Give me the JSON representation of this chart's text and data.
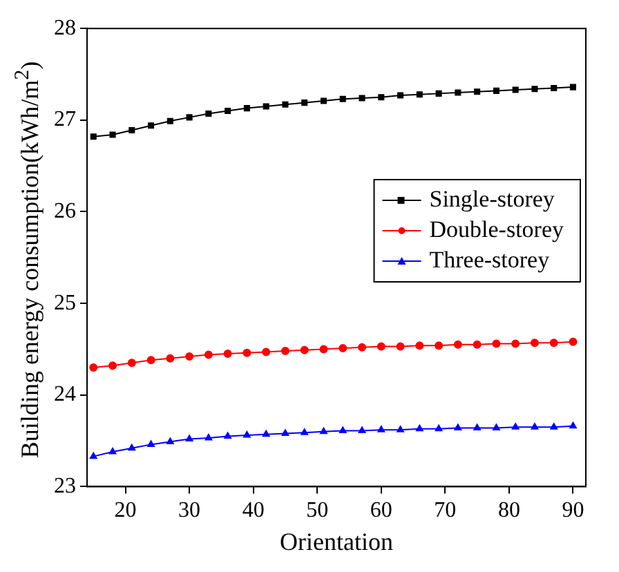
{
  "chart_data": {
    "type": "line",
    "xlabel": "Orientation",
    "ylabel": "Building energy consumption(kWh/m$^{2}$)",
    "x": [
      15,
      18,
      21,
      24,
      27,
      30,
      33,
      36,
      39,
      42,
      45,
      48,
      51,
      54,
      57,
      60,
      63,
      66,
      69,
      72,
      75,
      78,
      81,
      84,
      87,
      90
    ],
    "series": [
      {
        "name": "Single-storey",
        "color": "#000000",
        "marker": "square",
        "values": [
          26.82,
          26.84,
          26.89,
          26.94,
          26.99,
          27.03,
          27.07,
          27.1,
          27.13,
          27.15,
          27.17,
          27.19,
          27.21,
          27.23,
          27.24,
          27.25,
          27.27,
          27.28,
          27.29,
          27.3,
          27.31,
          27.32,
          27.33,
          27.34,
          27.35,
          27.36
        ]
      },
      {
        "name": "Double-storey",
        "color": "#ff0000",
        "marker": "circle",
        "values": [
          24.3,
          24.32,
          24.35,
          24.38,
          24.4,
          24.42,
          24.44,
          24.45,
          24.46,
          24.47,
          24.48,
          24.49,
          24.5,
          24.51,
          24.52,
          24.53,
          24.53,
          24.54,
          24.54,
          24.55,
          24.55,
          24.56,
          24.56,
          24.57,
          24.57,
          24.58
        ]
      },
      {
        "name": "Three-storey",
        "color": "#0000ff",
        "marker": "triangle",
        "values": [
          23.33,
          23.38,
          23.42,
          23.46,
          23.49,
          23.52,
          23.53,
          23.55,
          23.56,
          23.57,
          23.58,
          23.59,
          23.6,
          23.61,
          23.61,
          23.62,
          23.62,
          23.63,
          23.63,
          23.64,
          23.64,
          23.64,
          23.65,
          23.65,
          23.65,
          23.66
        ]
      }
    ],
    "xlim": [
      14,
      92
    ],
    "xticks": [
      20,
      30,
      40,
      50,
      60,
      70,
      80,
      90
    ],
    "ylim": [
      23,
      28
    ],
    "yticks": [
      23,
      24,
      25,
      26,
      27,
      28
    ],
    "grid": false,
    "legend": "right",
    "line_style": "solid"
  }
}
